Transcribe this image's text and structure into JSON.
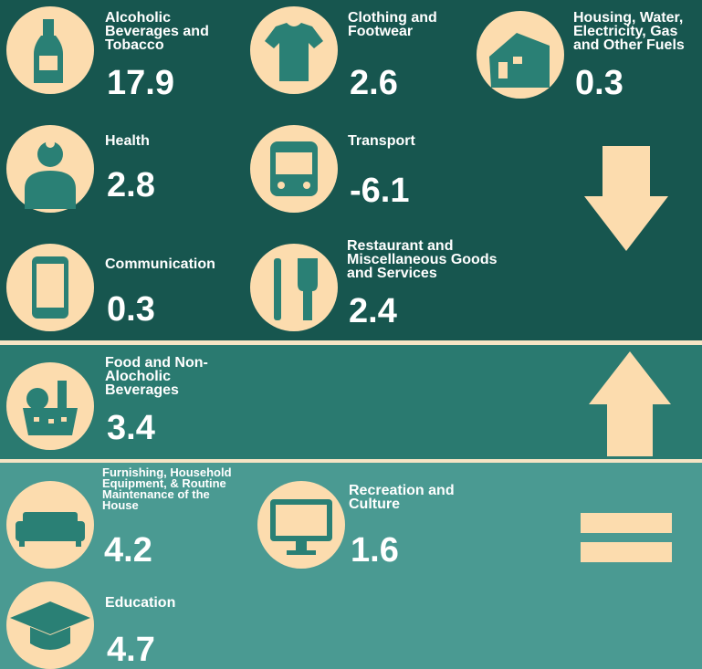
{
  "sections": [
    {
      "items": [
        {
          "label_lines": [
            "Alcoholic",
            "Beverages and",
            "Tobacco"
          ],
          "value": 17.9
        },
        {
          "label_lines": [
            "Clothing and",
            "Footwear"
          ],
          "value": 2.6
        },
        {
          "label_lines": [
            "Housing, Water,",
            "Electricity, Gas",
            "and Other Fuels"
          ],
          "value": 0.3
        },
        {
          "label_lines": [
            "Health"
          ],
          "value": 2.8
        },
        {
          "label_lines": [
            "Transport"
          ],
          "value": -6.1
        },
        {
          "label_lines": [
            "Communication"
          ],
          "value": 0.3
        },
        {
          "label_lines": [
            "Restaurant and",
            "Miscellaneous Goods",
            "and Services"
          ],
          "value": 2.4
        }
      ]
    },
    {
      "items": [
        {
          "label_lines": [
            "Food and Non-",
            "Alocholic",
            "Beverages"
          ],
          "value": 3.4
        }
      ]
    },
    {
      "items": [
        {
          "label_lines": [
            "Furnishing, Household",
            "Equipment, & Routine",
            "Maintenance of the",
            "House"
          ],
          "value": 4.2
        },
        {
          "label_lines": [
            "Recreation and",
            "Culture"
          ],
          "value": 1.6
        },
        {
          "label_lines": [
            "Education"
          ],
          "value": 4.7
        }
      ]
    }
  ]
}
